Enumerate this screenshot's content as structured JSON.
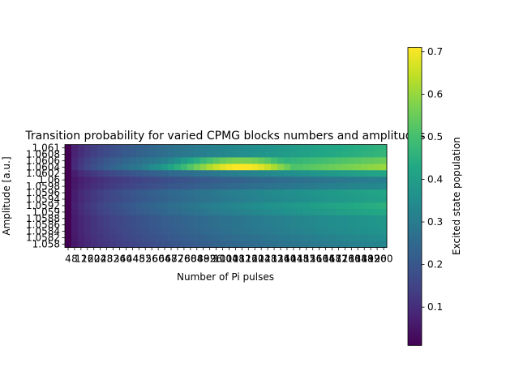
{
  "chart_data": {
    "type": "heatmap",
    "title": "Transition probability for varied CPMG blocks numbers and amplitudes",
    "xlabel": "Number of Pi pulses",
    "ylabel": "Amplitude [a.u.]",
    "colorbar_label": "Excited state population",
    "colormap": "viridis",
    "vmin": 0.01,
    "vmax": 0.71,
    "colorbar_ticks": [
      "0.1",
      "0.2",
      "0.3",
      "0.4",
      "0.5",
      "0.6",
      "0.7"
    ],
    "x": [
      4,
      8,
      12,
      16,
      20,
      24,
      28,
      32,
      36,
      40,
      44,
      48,
      52,
      56,
      60,
      64,
      68,
      72,
      76,
      80,
      84,
      88,
      92,
      96,
      100,
      104,
      108,
      112,
      116,
      120,
      124,
      128,
      132,
      136,
      140,
      144,
      148,
      152,
      156,
      160,
      164,
      168,
      172,
      176,
      180,
      184,
      188,
      192,
      196,
      200
    ],
    "x_tick_labels": [
      "4",
      "8",
      "12",
      "16",
      "20",
      "24",
      "28",
      "32",
      "36",
      "40",
      "44",
      "48",
      "52",
      "56",
      "60",
      "64",
      "68",
      "72",
      "76",
      "80",
      "84",
      "88",
      "92",
      "96",
      "100",
      "104",
      "108",
      "112",
      "116",
      "120",
      "124",
      "128",
      "132",
      "136",
      "140",
      "144",
      "148",
      "152",
      "156",
      "160",
      "164",
      "168",
      "172",
      "176",
      "180",
      "184",
      "188",
      "192",
      "196",
      "200"
    ],
    "y_tick_labels": [
      "1.058",
      "1.0582",
      "1.0584",
      "1.0586",
      "1.0588",
      "1.059",
      "1.0592",
      "1.0594",
      "1.0596",
      "1.0598",
      "1.06",
      "1.0602",
      "1.0604",
      "1.0606",
      "1.0608",
      "1.061"
    ],
    "rows": [
      {
        "amplitude": 1.061,
        "ramp": 0.46,
        "peak": null
      },
      {
        "amplitude": 1.0608,
        "ramp": 0.47,
        "peak": null
      },
      {
        "amplitude": 1.0606,
        "ramp": 0.55,
        "peak": 0.57
      },
      {
        "amplitude": 1.0604,
        "ramp": 0.6,
        "peak": 0.71
      },
      {
        "amplitude": 1.0602,
        "ramp": 0.42,
        "peak": null
      },
      {
        "amplitude": 1.06,
        "ramp": 0.31,
        "peak": null
      },
      {
        "amplitude": 1.0598,
        "ramp": 0.34,
        "peak": null
      },
      {
        "amplitude": 1.0596,
        "ramp": 0.42,
        "peak": null
      },
      {
        "amplitude": 1.0594,
        "ramp": 0.41,
        "peak": null
      },
      {
        "amplitude": 1.0592,
        "ramp": 0.45,
        "peak": null
      },
      {
        "amplitude": 1.059,
        "ramp": 0.43,
        "peak": null
      },
      {
        "amplitude": 1.0588,
        "ramp": 0.38,
        "peak": null
      },
      {
        "amplitude": 1.0586,
        "ramp": 0.38,
        "peak": null
      },
      {
        "amplitude": 1.0584,
        "ramp": 0.37,
        "peak": null
      },
      {
        "amplitude": 1.0582,
        "ramp": 0.35,
        "peak": null
      },
      {
        "amplitude": 1.058,
        "ramp": 0.33,
        "peak": null
      }
    ],
    "grid": false,
    "legend": "colorbar-right"
  }
}
